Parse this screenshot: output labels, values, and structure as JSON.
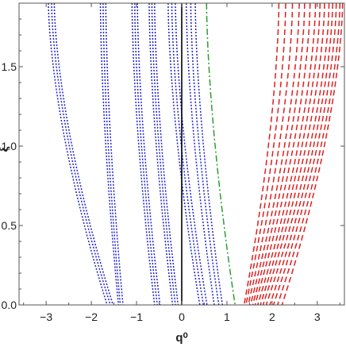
{
  "chart_data": {
    "type": "line",
    "title": "",
    "xlabel": "q⁰",
    "ylabel": "ξ",
    "xlim": [
      -3.6,
      3.6
    ],
    "ylim": [
      0,
      1.9
    ],
    "x_ticks": [
      -3,
      -2,
      -1,
      0,
      1,
      2,
      3
    ],
    "x_tick_labels": [
      "−3",
      "−2",
      "−1",
      "0",
      "1",
      "2",
      "3"
    ],
    "y_ticks": [
      0,
      0.5,
      1.0,
      1.5
    ],
    "y_tick_labels": [
      "0.0",
      "0.5",
      "1.0",
      "1.5"
    ],
    "grid": false,
    "vertical_reference_line": {
      "x": 0,
      "color": "#000000"
    },
    "series_groups": [
      {
        "color": "#1f1fd6",
        "dash": "dotted",
        "curves": [
          {
            "x_top": -2.95,
            "x_bottom": -1.65
          },
          {
            "x_top": -2.88,
            "x_bottom": -1.58
          },
          {
            "x_top": -2.82,
            "x_bottom": -1.52
          },
          {
            "x_top": -1.8,
            "x_bottom": -1.4
          },
          {
            "x_top": -1.74,
            "x_bottom": -1.36
          },
          {
            "x_top": -1.68,
            "x_bottom": -1.3
          },
          {
            "x_top": -1.1,
            "x_bottom": -0.6
          },
          {
            "x_top": -1.04,
            "x_bottom": -0.54
          },
          {
            "x_top": -0.98,
            "x_bottom": -0.48
          },
          {
            "x_top": -0.72,
            "x_bottom": -0.2
          },
          {
            "x_top": -0.66,
            "x_bottom": -0.14
          },
          {
            "x_top": -0.6,
            "x_bottom": -0.08
          },
          {
            "x_top": -0.3,
            "x_bottom": 0.4
          },
          {
            "x_top": -0.22,
            "x_bottom": 0.48
          },
          {
            "x_top": -0.14,
            "x_bottom": 0.56
          },
          {
            "x_top": 0.1,
            "x_bottom": 0.72
          },
          {
            "x_top": 0.2,
            "x_bottom": 0.82
          },
          {
            "x_top": 0.3,
            "x_bottom": 0.9
          }
        ]
      },
      {
        "color": "#2e9e2e",
        "dash": "dashdot",
        "curves": [
          {
            "x_top": 0.55,
            "x_bottom": 1.18
          }
        ]
      },
      {
        "color": "#e01e1e",
        "dash": "dashed",
        "curves": [
          {
            "x_top": 2.15,
            "x_bottom": 1.38
          },
          {
            "x_top": 2.3,
            "x_bottom": 1.42
          },
          {
            "x_top": 2.45,
            "x_bottom": 1.47
          },
          {
            "x_top": 2.6,
            "x_bottom": 1.52
          },
          {
            "x_top": 2.72,
            "x_bottom": 1.57
          },
          {
            "x_top": 2.84,
            "x_bottom": 1.62
          },
          {
            "x_top": 2.96,
            "x_bottom": 1.68
          },
          {
            "x_top": 3.06,
            "x_bottom": 1.74
          },
          {
            "x_top": 3.16,
            "x_bottom": 1.8
          },
          {
            "x_top": 3.26,
            "x_bottom": 1.87
          },
          {
            "x_top": 3.34,
            "x_bottom": 1.95
          },
          {
            "x_top": 3.42,
            "x_bottom": 2.03
          },
          {
            "x_top": 3.5,
            "x_bottom": 2.12
          },
          {
            "x_top": 3.56,
            "x_bottom": 2.22
          }
        ]
      }
    ]
  }
}
